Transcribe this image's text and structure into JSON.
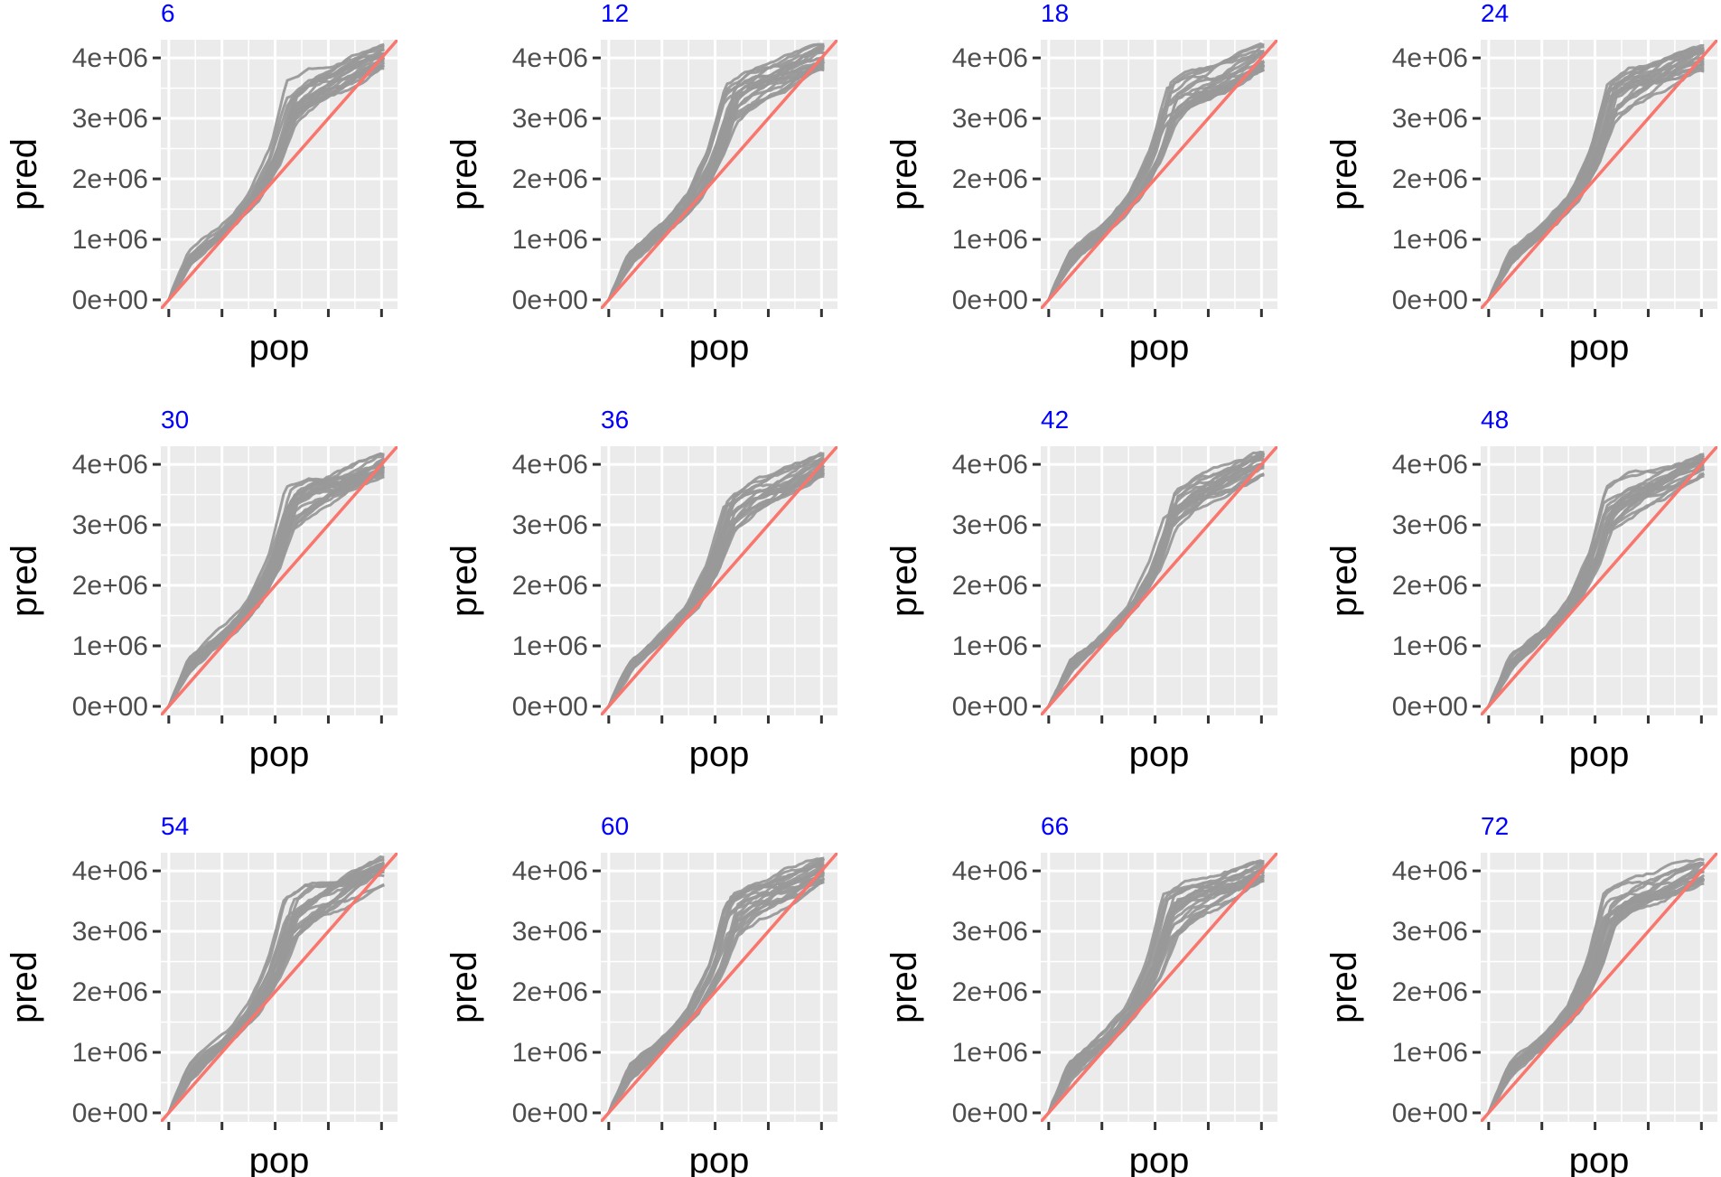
{
  "chart_data": {
    "type": "line",
    "layout": "facet-grid-3x4",
    "xlabel": "pop",
    "ylabel": "pred",
    "y_ticks": [
      0,
      1000000,
      2000000,
      3000000,
      4000000
    ],
    "y_tick_labels": [
      "0e+00",
      "1e+06",
      "2e+06",
      "3e+06",
      "4e+06"
    ],
    "ylim": [
      -150000,
      4300000
    ],
    "xlim": [
      -150000,
      4300000
    ],
    "x_ticks": [
      0,
      1000000,
      2000000,
      3000000,
      4000000
    ],
    "x_tick_labels": [
      "",
      "",
      "",
      "",
      ""
    ],
    "grid": true,
    "series_color": "#999999",
    "reference_color": "#f8766d",
    "title_color": "#0000ff",
    "reference_line": "y = x",
    "panels": [
      {
        "title": "6"
      },
      {
        "title": "12"
      },
      {
        "title": "18"
      },
      {
        "title": "24"
      },
      {
        "title": "30"
      },
      {
        "title": "36"
      },
      {
        "title": "42"
      },
      {
        "title": "48"
      },
      {
        "title": "54"
      },
      {
        "title": "60"
      },
      {
        "title": "66"
      },
      {
        "title": "72"
      }
    ],
    "lines_per_panel": 20,
    "curve_shape_pred_at_pop": [
      [
        0,
        0
      ],
      [
        400000,
        700000
      ],
      [
        800000,
        1000000
      ],
      [
        1200000,
        1300000
      ],
      [
        1600000,
        1700000
      ],
      [
        2000000,
        2400000
      ],
      [
        2300000,
        3300000
      ],
      [
        2700000,
        3550000
      ],
      [
        3200000,
        3700000
      ],
      [
        3600000,
        3850000
      ],
      [
        4000000,
        4000000
      ]
    ]
  }
}
